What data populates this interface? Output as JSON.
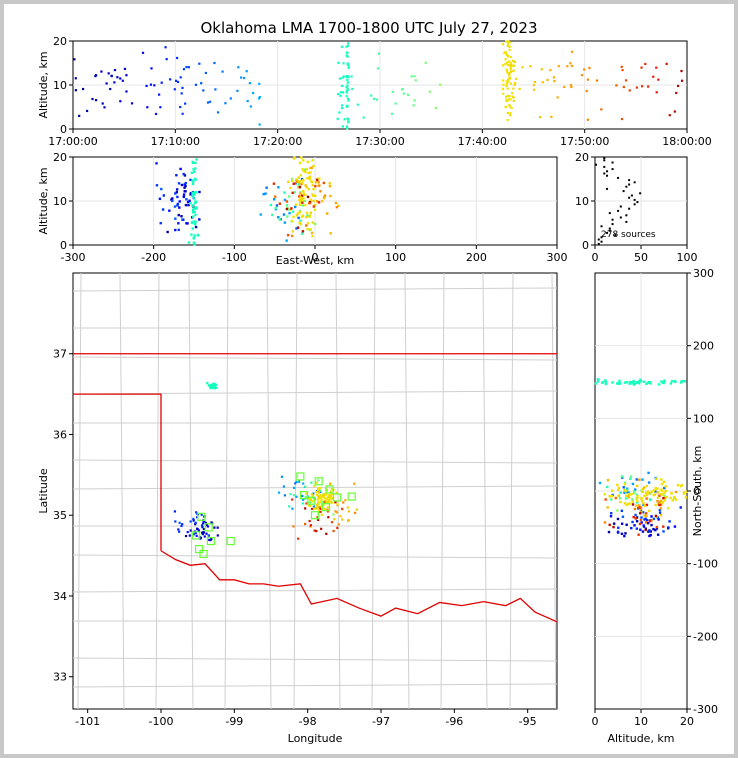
{
  "title": "Oklahoma LMA 1700-1800 UTC July 27, 2023",
  "source_count": "278 sources",
  "chart_data": [
    {
      "type": "scatter",
      "panel": "altitude-time",
      "xlim": [
        "17:00:00",
        "18:00:00"
      ],
      "ylim": [
        0,
        20
      ],
      "ylabel": "Altitude, km",
      "xticks": [
        "17:00:00",
        "17:10:00",
        "17:20:00",
        "17:30:00",
        "17:40:00",
        "17:50:00",
        "18:00:00"
      ],
      "yticks": [
        "0",
        "10",
        "20"
      ],
      "grid": true
    },
    {
      "type": "scatter",
      "panel": "east-west-altitude",
      "xlim": [
        -300,
        300
      ],
      "ylim": [
        0,
        20
      ],
      "xlabel": "East-West, km",
      "ylabel": "Altitude, km",
      "xticks": [
        "-300",
        "-200",
        "-100",
        "0",
        "100",
        "200",
        "300"
      ],
      "yticks": [
        "0",
        "10",
        "20"
      ],
      "grid": true
    },
    {
      "type": "histogram",
      "panel": "altitude-count",
      "xlim": [
        0,
        100
      ],
      "ylim": [
        0,
        20
      ],
      "xticks": [
        "0",
        "50",
        "100"
      ],
      "yticks": [
        "0",
        "10",
        "20"
      ],
      "annotation": "278 sources",
      "grid": true
    },
    {
      "type": "scatter",
      "panel": "plan-view-map",
      "xlim": [
        -101.2,
        -94.6
      ],
      "ylim": [
        32.6,
        38.0
      ],
      "xlabel": "Longitude",
      "ylabel": "Latitude",
      "xticks": [
        "-101",
        "-100",
        "-99",
        "-98",
        "-97",
        "-96",
        "-95"
      ],
      "yticks": [
        "33",
        "34",
        "35",
        "36",
        "37"
      ],
      "stations": [
        {
          "lon": -98.1,
          "lat": 35.48
        },
        {
          "lon": -97.85,
          "lat": 35.42
        },
        {
          "lon": -97.7,
          "lat": 35.32
        },
        {
          "lon": -98.05,
          "lat": 35.25
        },
        {
          "lon": -97.95,
          "lat": 35.18
        },
        {
          "lon": -97.75,
          "lat": 35.1
        },
        {
          "lon": -97.6,
          "lat": 35.22
        },
        {
          "lon": -97.4,
          "lat": 35.23
        },
        {
          "lon": -97.9,
          "lat": 35.0
        },
        {
          "lon": -99.45,
          "lat": 34.98
        },
        {
          "lon": -99.35,
          "lat": 34.85
        },
        {
          "lon": -99.52,
          "lat": 34.75
        },
        {
          "lon": -99.32,
          "lat": 34.68
        },
        {
          "lon": -99.05,
          "lat": 34.68
        },
        {
          "lon": -99.48,
          "lat": 34.58
        },
        {
          "lon": -99.42,
          "lat": 34.52
        }
      ]
    },
    {
      "type": "scatter",
      "panel": "altitude-north-south",
      "xlim": [
        0,
        20
      ],
      "ylim": [
        -300,
        300
      ],
      "xlabel": "Altitude, km",
      "ylabel": "North-South, km",
      "xticks": [
        "0",
        "10",
        "20"
      ],
      "yticks": [
        "-300",
        "-200",
        "-100",
        "0",
        "100",
        "200",
        "300"
      ],
      "grid": true
    }
  ]
}
